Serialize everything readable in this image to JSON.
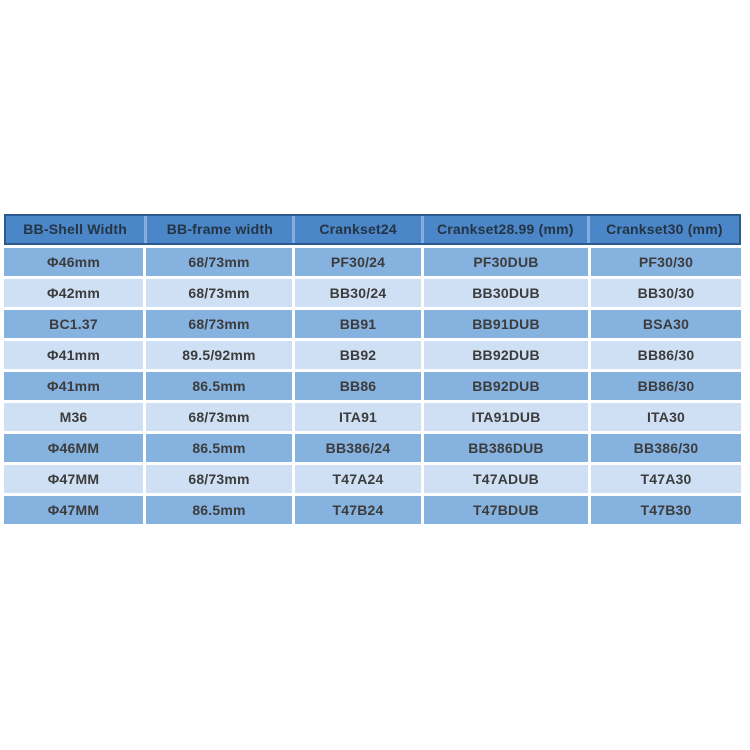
{
  "chart_data": {
    "type": "table",
    "title": "",
    "columns": [
      "BB-Shell Width",
      "BB-frame width",
      "Crankset24",
      "Crankset28.99 (mm)",
      "Crankset30 (mm)"
    ],
    "rows": [
      [
        "Φ46mm",
        "68/73mm",
        "PF30/24",
        "PF30DUB",
        "PF30/30"
      ],
      [
        "Φ42mm",
        "68/73mm",
        "BB30/24",
        "BB30DUB",
        "BB30/30"
      ],
      [
        "BC1.37",
        "68/73mm",
        "BB91",
        "BB91DUB",
        "BSA30"
      ],
      [
        "Φ41mm",
        "89.5/92mm",
        "BB92",
        "BB92DUB",
        "BB86/30"
      ],
      [
        "Φ41mm",
        "86.5mm",
        "BB86",
        "BB92DUB",
        "BB86/30"
      ],
      [
        "M36",
        "68/73mm",
        "ITA91",
        "ITA91DUB",
        "ITA30"
      ],
      [
        "Φ46MM",
        "86.5mm",
        "BB386/24",
        "BB386DUB",
        "BB386/30"
      ],
      [
        "Φ47MM",
        "68/73mm",
        "T47A24",
        "T47ADUB",
        "T47A30"
      ],
      [
        "Φ47MM",
        "86.5mm",
        "T47B24",
        "T47BDUB",
        "T47B30"
      ]
    ],
    "layout": {
      "grid": "off",
      "row_striping": "alternating medium-blue / light-blue starting with medium-blue",
      "header_position": "top"
    }
  },
  "colors": {
    "header_bg": "#4A86C8",
    "header_text": "#253444",
    "header_border": "#2D5A8E",
    "header_gap": "#85ADDE",
    "row_medium": "#86B2E0",
    "row_light": "#D0E0F4",
    "body_text": "#3C3C3C",
    "page_bg": "#FFFFFF"
  }
}
